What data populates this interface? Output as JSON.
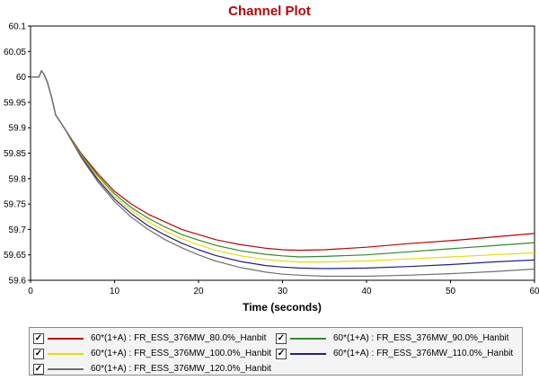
{
  "chart_data": {
    "type": "line",
    "title": "Channel Plot",
    "title_color": "#c00000",
    "xlabel": "Time (seconds)",
    "ylabel": "",
    "xlim": [
      0,
      60
    ],
    "ylim": [
      59.6,
      60.1
    ],
    "x_ticks": [
      0,
      10,
      20,
      30,
      40,
      50,
      60
    ],
    "y_ticks": [
      59.6,
      59.65,
      59.7,
      59.75,
      59.8,
      59.85,
      59.9,
      59.95,
      60,
      60.05,
      60.1
    ],
    "grid": false,
    "legend_position": "bottom",
    "series": [
      {
        "name": "60*(1+A) : FR_ESS_376MW_80.0%_Hanbit",
        "color": "#c00000",
        "x": [
          0,
          1,
          1.3,
          1.6,
          2,
          2.5,
          3,
          4,
          5,
          6,
          8,
          10,
          12,
          14,
          16,
          18,
          20,
          22,
          25,
          28,
          30,
          32,
          35,
          40,
          45,
          50,
          55,
          60
        ],
        "y": [
          60,
          60,
          60.012,
          60.005,
          59.99,
          59.96,
          59.925,
          59.9,
          59.875,
          59.85,
          59.81,
          59.775,
          59.75,
          59.73,
          59.715,
          59.7,
          59.69,
          59.68,
          59.67,
          59.663,
          59.66,
          59.659,
          59.66,
          59.665,
          59.672,
          59.678,
          59.685,
          59.692
        ]
      },
      {
        "name": "60*(1+A) : FR_ESS_376MW_90.0%_Hanbit",
        "color": "#2e8b2e",
        "x": [
          0,
          1,
          1.3,
          1.6,
          2,
          2.5,
          3,
          4,
          5,
          6,
          8,
          10,
          12,
          14,
          16,
          18,
          20,
          22,
          25,
          28,
          30,
          32,
          35,
          40,
          45,
          50,
          55,
          60
        ],
        "y": [
          60,
          60,
          60.012,
          60.005,
          59.99,
          59.96,
          59.925,
          59.9,
          59.874,
          59.848,
          59.806,
          59.77,
          59.743,
          59.722,
          59.705,
          59.69,
          59.679,
          59.669,
          59.658,
          59.651,
          59.648,
          59.646,
          59.647,
          59.65,
          59.656,
          59.662,
          59.668,
          59.674
        ]
      },
      {
        "name": "60*(1+A) : FR_ESS_376MW_100.0%_Hanbit",
        "color": "#e0e000",
        "x": [
          0,
          1,
          1.3,
          1.6,
          2,
          2.5,
          3,
          4,
          5,
          6,
          8,
          10,
          12,
          14,
          16,
          18,
          20,
          22,
          25,
          28,
          30,
          32,
          35,
          40,
          45,
          50,
          55,
          60
        ],
        "y": [
          60,
          60,
          60.012,
          60.005,
          59.99,
          59.96,
          59.925,
          59.9,
          59.873,
          59.846,
          59.802,
          59.765,
          59.737,
          59.715,
          59.697,
          59.682,
          59.67,
          59.659,
          59.648,
          59.641,
          59.638,
          59.636,
          59.636,
          59.638,
          59.642,
          59.646,
          59.65,
          59.654
        ]
      },
      {
        "name": "60*(1+A) : FR_ESS_376MW_110.0%_Hanbit",
        "color": "#1f1f8f",
        "x": [
          0,
          1,
          1.3,
          1.6,
          2,
          2.5,
          3,
          4,
          5,
          6,
          8,
          10,
          12,
          14,
          16,
          18,
          20,
          22,
          25,
          28,
          30,
          32,
          35,
          40,
          45,
          50,
          55,
          60
        ],
        "y": [
          60,
          60,
          60.012,
          60.005,
          59.99,
          59.96,
          59.925,
          59.9,
          59.872,
          59.844,
          59.798,
          59.76,
          59.731,
          59.707,
          59.689,
          59.673,
          59.66,
          59.649,
          59.637,
          59.629,
          59.626,
          59.624,
          59.623,
          59.624,
          59.627,
          59.631,
          59.636,
          59.64
        ]
      },
      {
        "name": "60*(1+A) : FR_ESS_376MW_120.0%_Hanbit",
        "color": "#707070",
        "x": [
          0,
          1,
          1.3,
          1.6,
          2,
          2.5,
          3,
          4,
          5,
          6,
          8,
          10,
          12,
          14,
          16,
          18,
          20,
          22,
          25,
          28,
          30,
          32,
          35,
          40,
          45,
          50,
          55,
          60
        ],
        "y": [
          60,
          60,
          60.012,
          60.005,
          59.99,
          59.96,
          59.925,
          59.9,
          59.871,
          59.842,
          59.794,
          59.755,
          59.724,
          59.7,
          59.68,
          59.664,
          59.65,
          59.638,
          59.625,
          59.616,
          59.612,
          59.61,
          59.608,
          59.608,
          59.61,
          59.613,
          59.617,
          59.622
        ]
      }
    ]
  },
  "legend": {
    "items": [
      {
        "label": "60*(1+A) : FR_ESS_376MW_80.0%_Hanbit",
        "color": "#c00000",
        "checked": "✓"
      },
      {
        "label": "60*(1+A) : FR_ESS_376MW_90.0%_Hanbit",
        "color": "#2e8b2e",
        "checked": "✓"
      },
      {
        "label": "60*(1+A) : FR_ESS_376MW_100.0%_Hanbit",
        "color": "#e0e000",
        "checked": "✓"
      },
      {
        "label": "60*(1+A) : FR_ESS_376MW_110.0%_Hanbit",
        "color": "#1f1f8f",
        "checked": "✓"
      },
      {
        "label": "60*(1+A) : FR_ESS_376MW_120.0%_Hanbit",
        "color": "#707070",
        "checked": "✓"
      }
    ]
  }
}
